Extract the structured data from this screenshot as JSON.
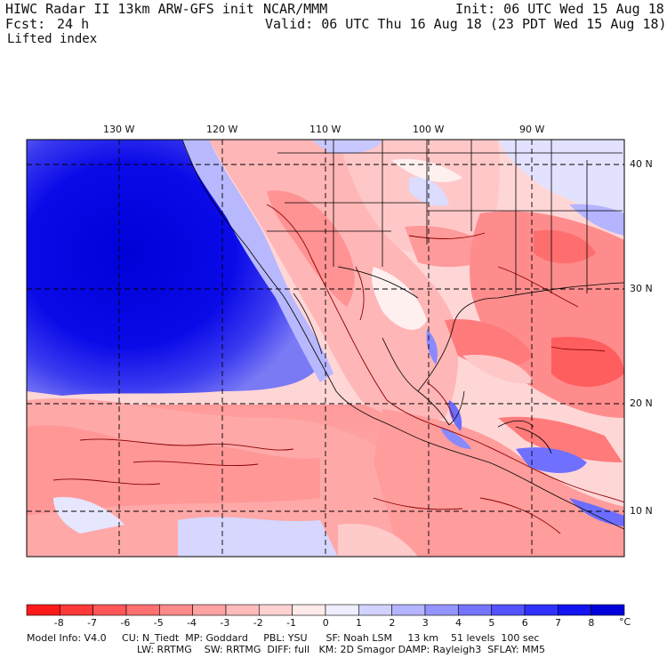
{
  "header": {
    "title": "HIWC Radar II 13km ARW-GFS init",
    "org": "NCAR/MMM",
    "init": "Init: 06 UTC Wed 15 Aug 18",
    "fcst_label": "Fcst:",
    "fcst_value": "24 h",
    "valid": "Valid: 06 UTC Thu 16 Aug 18 (23 PDT Wed 15 Aug 18)",
    "field": "Lifted index"
  },
  "map": {
    "lon_labels": [
      "130 W",
      "120 W",
      "110 W",
      "100 W",
      "90 W"
    ],
    "lat_labels": [
      "40 N",
      "30 N",
      "20 N",
      "10 N"
    ]
  },
  "colorbar": {
    "ticks": [
      "-8",
      "-7",
      "-6",
      "-5",
      "-4",
      "-3",
      "-2",
      "-1",
      "0",
      "1",
      "2",
      "3",
      "4",
      "5",
      "6",
      "7",
      "8"
    ],
    "unit": "°C",
    "colors": [
      "#ff1a1a",
      "#ff3838",
      "#ff5656",
      "#ff7070",
      "#ff8a8a",
      "#ffa2a2",
      "#ffbaba",
      "#ffd2d2",
      "#ffeaea",
      "#eeeeff",
      "#d2d2ff",
      "#b4b4ff",
      "#9494ff",
      "#7474ff",
      "#5252ff",
      "#3030ff",
      "#1414f0",
      "#0000dc"
    ]
  },
  "model_info": {
    "line1": "Model Info: V4.0     CU: N_Tiedt  MP: Goddard     PBL: YSU      SF: Noah LSM     13 km    51 levels  100 sec",
    "line2": "LW: RRTMG    SW: RRTMG  DIFF: full   KM: 2D Smagor DAMP: Rayleigh3  SFLAY: MM5"
  }
}
